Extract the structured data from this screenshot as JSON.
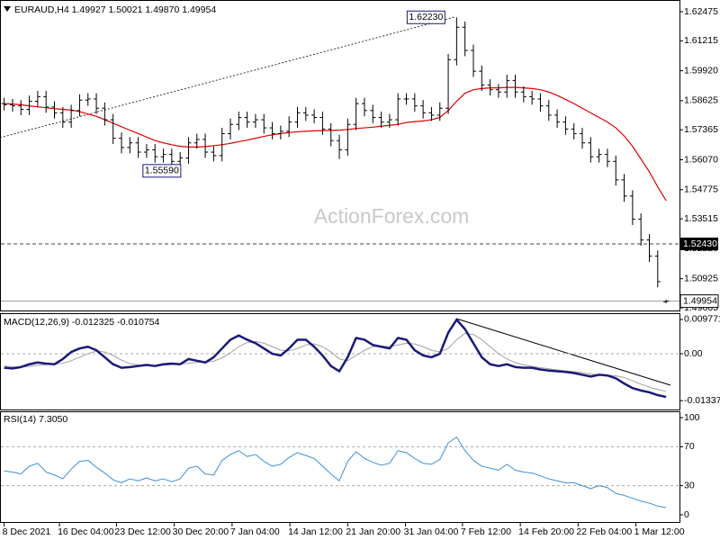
{
  "chart_data": [
    {
      "type": "ohlc",
      "title": "EURAUD,H4  1.49927 1.50021 1.49870 1.49954",
      "watermark": "ActionForex.com",
      "color": "#000000",
      "xlim": [
        -0.5,
        80.6
      ],
      "xticks": [
        {
          "value": 0,
          "label": "8 Dec 2021"
        },
        {
          "value": 6.6,
          "label": "16 Dec 04:00"
        },
        {
          "value": 13.4,
          "label": "23 Dec 12:00"
        },
        {
          "value": 20.3,
          "label": "30 Dec 20:00"
        },
        {
          "value": 27.2,
          "label": "7 Jan 04:00"
        },
        {
          "value": 34.1,
          "label": "14 Jan 12:00"
        },
        {
          "value": 41,
          "label": "21 Jan 20:00"
        },
        {
          "value": 47.9,
          "label": "31 Jan 04:00"
        },
        {
          "value": 54.7,
          "label": "7 Feb 12:00"
        },
        {
          "value": 61.6,
          "label": "14 Feb 20:00"
        },
        {
          "value": 68.5,
          "label": "22 Feb 04:00"
        },
        {
          "value": 75.4,
          "label": "1 Mar 12:00"
        }
      ],
      "ylim": [
        1.4955,
        1.6298
      ],
      "yticks": [
        1.62475,
        1.61215,
        {
          "value": 1.5992,
          "label": "1.59920"
        },
        1.58625,
        1.57365,
        {
          "value": 1.5607,
          "label": "1.56070"
        },
        1.54775,
        1.53515,
        {
          "value": 1.5222,
          "label": "1.52220"
        },
        1.50925,
        1.49665
      ],
      "open": [
        1.585,
        1.5845,
        1.584,
        1.5825,
        1.586,
        1.588,
        1.5835,
        1.581,
        1.577,
        1.582,
        1.5865,
        1.587,
        1.583,
        1.578,
        1.57,
        1.566,
        1.568,
        1.564,
        1.565,
        1.562,
        1.563,
        1.56,
        1.5615,
        1.568,
        1.5695,
        1.564,
        1.5625,
        1.572,
        1.576,
        1.579,
        1.577,
        1.578,
        1.5745,
        1.572,
        1.573,
        1.577,
        1.581,
        1.58,
        1.579,
        1.574,
        1.569,
        1.565,
        1.576,
        1.585,
        1.582,
        1.579,
        1.577,
        1.578,
        1.587,
        1.587,
        1.584,
        1.581,
        1.58,
        1.583,
        1.604,
        1.618,
        1.608,
        1.599,
        1.593,
        1.591,
        1.59,
        1.595,
        1.59,
        1.588,
        1.587,
        1.584,
        1.58,
        1.577,
        1.574,
        1.572,
        1.568,
        1.562,
        1.563,
        1.56,
        1.552,
        1.545,
        1.535,
        1.526,
        1.519,
        1.49927
      ],
      "high": [
        1.5875,
        1.587,
        1.5865,
        1.5885,
        1.5905,
        1.5905,
        1.586,
        1.5835,
        1.5845,
        1.589,
        1.5895,
        1.5895,
        1.5855,
        1.5805,
        1.5725,
        1.5705,
        1.5705,
        1.5675,
        1.5675,
        1.5655,
        1.5655,
        1.564,
        1.5705,
        1.572,
        1.572,
        1.5665,
        1.5745,
        1.5785,
        1.5815,
        1.5815,
        1.5805,
        1.5805,
        1.577,
        1.5755,
        1.5795,
        1.5835,
        1.5835,
        1.5825,
        1.5815,
        1.5765,
        1.5715,
        1.5785,
        1.5875,
        1.5875,
        1.5845,
        1.5815,
        1.5805,
        1.5895,
        1.5895,
        1.5895,
        1.5865,
        1.5835,
        1.5855,
        1.6065,
        1.6223,
        1.6205,
        1.6105,
        1.6015,
        1.5955,
        1.5935,
        1.5975,
        1.5975,
        1.5925,
        1.5905,
        1.5895,
        1.5865,
        1.5825,
        1.5795,
        1.5765,
        1.5745,
        1.5705,
        1.5655,
        1.5655,
        1.5625,
        1.5545,
        1.5475,
        1.5375,
        1.5285,
        1.5215,
        1.50021
      ],
      "low": [
        1.582,
        1.5815,
        1.58,
        1.58,
        1.5835,
        1.581,
        1.5785,
        1.5745,
        1.5745,
        1.5795,
        1.584,
        1.5805,
        1.5755,
        1.5675,
        1.5635,
        1.5635,
        1.5615,
        1.5615,
        1.5595,
        1.5595,
        1.5559,
        1.5575,
        1.559,
        1.5655,
        1.5615,
        1.56,
        1.56,
        1.5695,
        1.5735,
        1.5745,
        1.5745,
        1.572,
        1.5695,
        1.5695,
        1.5705,
        1.5745,
        1.5775,
        1.5765,
        1.5715,
        1.5665,
        1.561,
        1.5625,
        1.5735,
        1.5795,
        1.5765,
        1.5745,
        1.5745,
        1.5755,
        1.5845,
        1.5815,
        1.5785,
        1.5775,
        1.5775,
        1.5805,
        1.6015,
        1.6055,
        1.5965,
        1.5905,
        1.5885,
        1.5875,
        1.5875,
        1.5875,
        1.5855,
        1.5845,
        1.5815,
        1.5775,
        1.5745,
        1.5715,
        1.5695,
        1.5655,
        1.5595,
        1.5595,
        1.5575,
        1.5495,
        1.5425,
        1.5325,
        1.5235,
        1.5165,
        1.5055,
        1.4987
      ],
      "close": [
        1.5845,
        1.584,
        1.5825,
        1.586,
        1.588,
        1.5835,
        1.581,
        1.577,
        1.582,
        1.5865,
        1.587,
        1.583,
        1.578,
        1.57,
        1.566,
        1.568,
        1.564,
        1.565,
        1.562,
        1.563,
        1.56,
        1.5615,
        1.568,
        1.5695,
        1.564,
        1.5625,
        1.572,
        1.576,
        1.579,
        1.577,
        1.578,
        1.5745,
        1.572,
        1.573,
        1.577,
        1.581,
        1.58,
        1.579,
        1.574,
        1.569,
        1.565,
        1.576,
        1.585,
        1.582,
        1.579,
        1.577,
        1.578,
        1.587,
        1.587,
        1.584,
        1.581,
        1.58,
        1.583,
        1.604,
        1.618,
        1.608,
        1.599,
        1.593,
        1.591,
        1.59,
        1.595,
        1.59,
        1.588,
        1.587,
        1.584,
        1.58,
        1.577,
        1.574,
        1.572,
        1.568,
        1.562,
        1.563,
        1.56,
        1.552,
        1.545,
        1.535,
        1.526,
        1.519,
        1.508,
        1.49954
      ],
      "moving_average": {
        "color": "#e00000",
        "values": [
          1.585,
          1.5848,
          1.5845,
          1.584,
          1.5836,
          1.5832,
          1.5828,
          1.5825,
          1.5822,
          1.5815,
          1.5805,
          1.5795,
          1.578,
          1.5765,
          1.575,
          1.5735,
          1.572,
          1.5705,
          1.569,
          1.568,
          1.5672,
          1.5665,
          1.5662,
          1.5662,
          1.5664,
          1.5668,
          1.5672,
          1.5678,
          1.5685,
          1.5692,
          1.57,
          1.5708,
          1.5715,
          1.572,
          1.5725,
          1.5728,
          1.573,
          1.5732,
          1.5733,
          1.5734,
          1.5735,
          1.5738,
          1.5742,
          1.5745,
          1.5748,
          1.5752,
          1.5756,
          1.576,
          1.5768,
          1.5772,
          1.5775,
          1.578,
          1.579,
          1.582,
          1.586,
          1.5895,
          1.591,
          1.5915,
          1.5918,
          1.5918,
          1.592,
          1.592,
          1.5918,
          1.5915,
          1.591,
          1.59,
          1.5885,
          1.5868,
          1.585,
          1.583,
          1.581,
          1.579,
          1.577,
          1.5745,
          1.571,
          1.5665,
          1.561,
          1.5555,
          1.549,
          1.543
        ]
      },
      "annotations": [
        {
          "index": 54,
          "value": 1.6223,
          "label": "1.62230"
        },
        {
          "index": 20,
          "value": 1.5559,
          "label": "1.55590"
        }
      ],
      "hline": {
        "value": 1.5243,
        "label": "1.52430"
      }
    },
    {
      "type": "line",
      "title": "MACD(12,26,9) -0.012325 -0.010754",
      "ylim": [
        -0.0159,
        0.0113
      ],
      "yticks": [
        0.009771,
        {
          "value": 0,
          "label": "0.00"
        },
        -0.013377
      ],
      "levels": [
        0
      ],
      "series": [
        {
          "color": "#1a1a7a",
          "width": 2.5,
          "values": [
            -0.004,
            -0.0042,
            -0.0038,
            -0.003,
            -0.0025,
            -0.0028,
            -0.003,
            -0.0015,
            0.0005,
            0.0015,
            0.002,
            0.001,
            -0.001,
            -0.003,
            -0.004,
            -0.0038,
            -0.0035,
            -0.0032,
            -0.0035,
            -0.003,
            -0.0028,
            -0.003,
            -0.0015,
            -0.002,
            -0.0025,
            -0.001,
            0.0015,
            0.004,
            0.0052,
            0.004,
            0.003,
            0.0015,
            0.0,
            -0.0005,
            0.0015,
            0.004,
            0.004,
            0.002,
            -0.0005,
            -0.0035,
            -0.005,
            -0.001,
            0.0045,
            0.004,
            0.0025,
            0.002,
            0.0015,
            0.0045,
            0.004,
            0.001,
            -0.0005,
            -0.001,
            0.0,
            0.006,
            0.0097,
            0.007,
            0.003,
            -0.001,
            -0.003,
            -0.0035,
            -0.003,
            -0.0038,
            -0.004,
            -0.004,
            -0.0045,
            -0.0048,
            -0.005,
            -0.0052,
            -0.0055,
            -0.006,
            -0.0065,
            -0.006,
            -0.0062,
            -0.007,
            -0.0085,
            -0.0098,
            -0.0105,
            -0.011,
            -0.0118,
            -0.012325
          ]
        },
        {
          "color": "#a0a0a0",
          "width": 1,
          "values": [
            -0.0035,
            -0.0037,
            -0.0038,
            -0.0036,
            -0.0033,
            -0.0031,
            -0.003,
            -0.0027,
            -0.002,
            -0.001,
            0.0,
            0.0008,
            0.0005,
            -0.0005,
            -0.0018,
            -0.0028,
            -0.0032,
            -0.0034,
            -0.0034,
            -0.0033,
            -0.0031,
            -0.003,
            -0.0027,
            -0.0025,
            -0.0024,
            -0.0021,
            -0.0012,
            0.0003,
            0.002,
            0.0032,
            0.0035,
            0.003,
            0.002,
            0.001,
            0.0008,
            0.0015,
            0.0025,
            0.0028,
            0.002,
            0.0005,
            -0.0015,
            -0.002,
            -0.0005,
            0.001,
            0.002,
            0.0022,
            0.002,
            0.0025,
            0.003,
            0.0028,
            0.002,
            0.001,
            0.0005,
            0.0015,
            0.004,
            0.0058,
            0.0055,
            0.004,
            0.002,
            0.0,
            -0.0015,
            -0.0025,
            -0.0032,
            -0.0036,
            -0.004,
            -0.0043,
            -0.0046,
            -0.0049,
            -0.0051,
            -0.0054,
            -0.0058,
            -0.006,
            -0.0061,
            -0.0063,
            -0.0068,
            -0.0077,
            -0.0087,
            -0.0095,
            -0.0102,
            -0.010754
          ]
        }
      ]
    },
    {
      "type": "line",
      "title": "RSI(14) 7.3050",
      "ylim": [
        -7.4,
        105.6
      ],
      "yticks": [
        100,
        70,
        30,
        0
      ],
      "levels": [
        70,
        30
      ],
      "series": [
        {
          "color": "#3d8fd6",
          "width": 1,
          "values": [
            45,
            44,
            42,
            50,
            53,
            44,
            41,
            37,
            47,
            55,
            56,
            49,
            43,
            36,
            33,
            37,
            35,
            38,
            35,
            37,
            34,
            37,
            48,
            50,
            42,
            41,
            56,
            62,
            66,
            60,
            62,
            55,
            50,
            52,
            59,
            64,
            61,
            58,
            50,
            42,
            35,
            55,
            65,
            58,
            54,
            51,
            53,
            66,
            64,
            58,
            53,
            52,
            57,
            74,
            80,
            66,
            56,
            50,
            48,
            46,
            52,
            46,
            44,
            43,
            40,
            37,
            35,
            33,
            33,
            30,
            27,
            30,
            28,
            22,
            20,
            17,
            14,
            12,
            9,
            7.305
          ]
        }
      ]
    }
  ]
}
